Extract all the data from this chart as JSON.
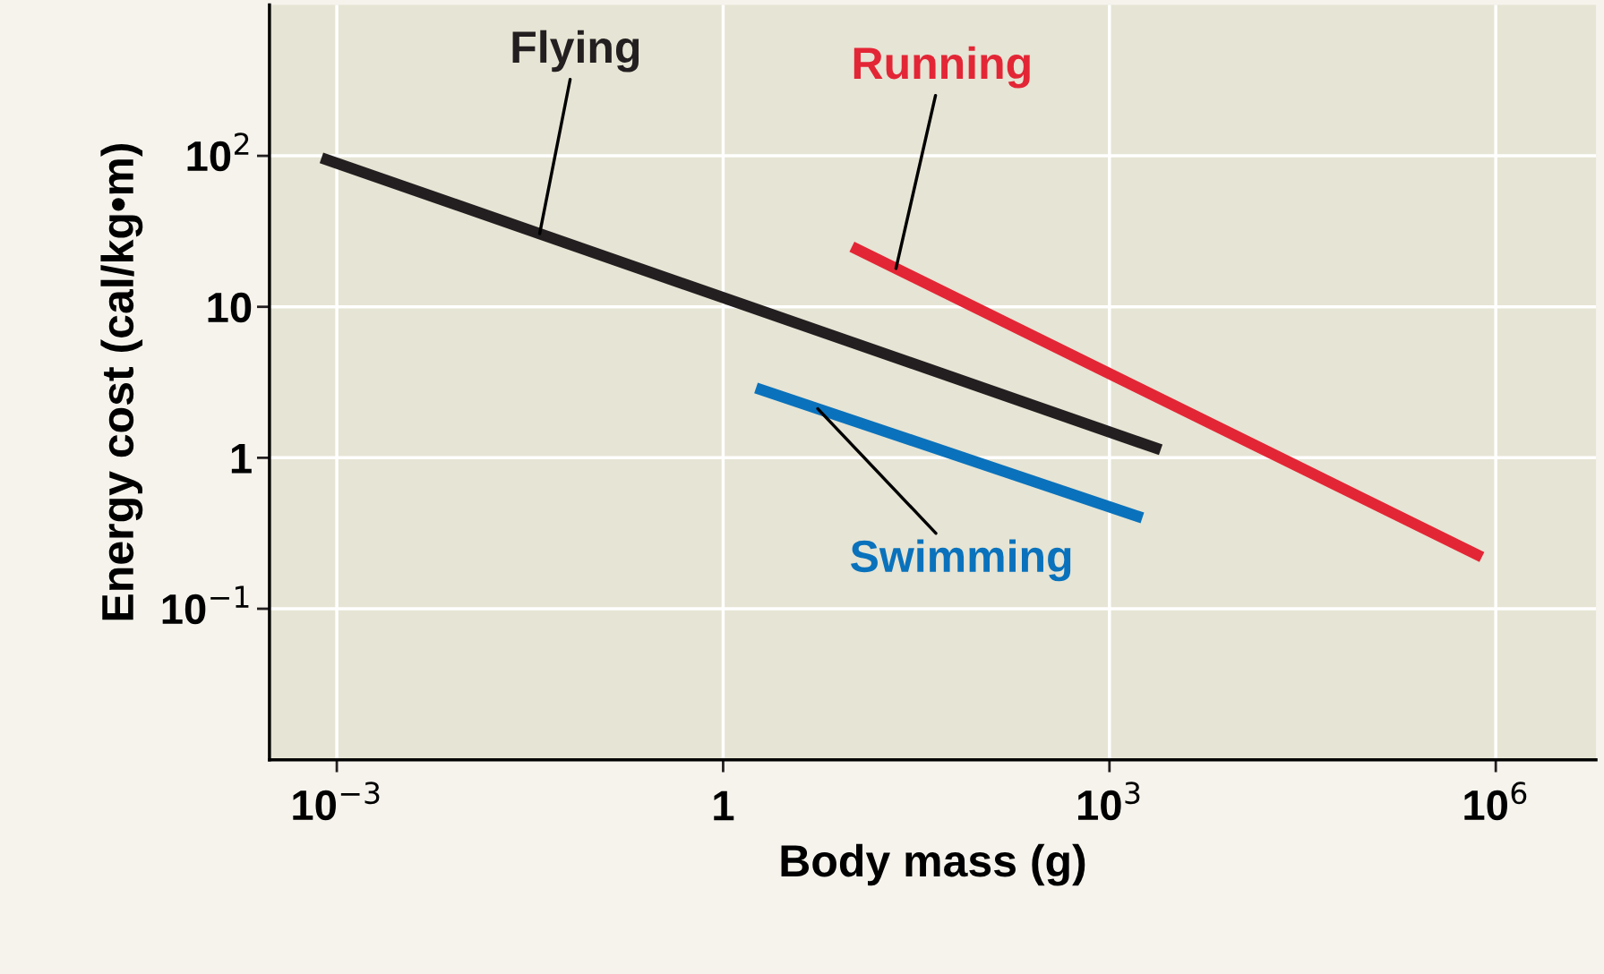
{
  "chart_data": {
    "type": "line",
    "xlabel": "Body mass (g)",
    "ylabel": "Energy cost (cal/kg•m)",
    "log": "xy",
    "grid": true,
    "legend": false,
    "marker": "none",
    "line_style": "solid",
    "xlim": [
      0.0003,
      6000000
    ],
    "ylim": [
      0.01,
      1000
    ],
    "xticks": [
      {
        "value": 0.001,
        "label": "10$^{−3}$"
      },
      1,
      {
        "value": 1000,
        "label": "10$^{3}$"
      },
      {
        "value": 1000000,
        "label": "10$^{6}$"
      }
    ],
    "yticks": [
      {
        "value": 0.1,
        "label": "10$^{−1}$"
      },
      1,
      10,
      {
        "value": 100,
        "label": "10$^{2}$"
      }
    ],
    "series": [
      {
        "name": "Flying",
        "color": "#231f20",
        "x": [
          0.00076,
          2500
        ],
        "values": [
          97,
          1.13
        ]
      },
      {
        "name": "Running",
        "color": "#e32636",
        "x": [
          10,
          780000
        ],
        "values": [
          25,
          0.22
        ]
      },
      {
        "name": "Swimming",
        "color": "#0a72bc",
        "x": [
          1.8,
          1800
        ],
        "values": [
          2.9,
          0.4
        ]
      }
    ]
  }
}
